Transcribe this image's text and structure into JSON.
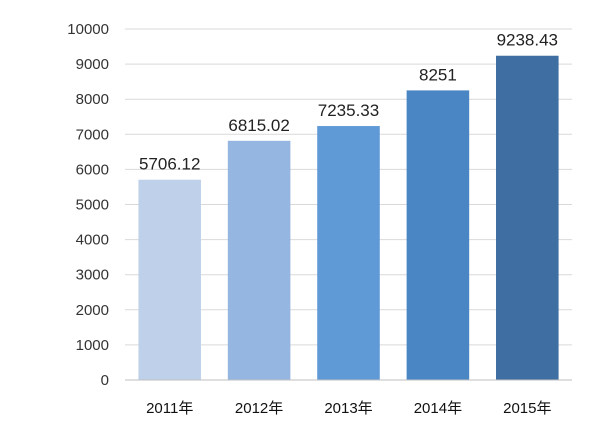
{
  "chart_data": {
    "type": "bar",
    "categories": [
      "2011年",
      "2012年",
      "2013年",
      "2014年",
      "2015年"
    ],
    "values": [
      5706.12,
      6815.02,
      7235.33,
      8251,
      9238.43
    ],
    "data_labels": [
      "5706.12",
      "6815.02",
      "7235.33",
      "8251",
      "9238.43"
    ],
    "title": "",
    "xlabel": "",
    "ylabel": "",
    "ylim": [
      0,
      10000
    ],
    "yticks": [
      0,
      1000,
      2000,
      3000,
      4000,
      5000,
      6000,
      7000,
      8000,
      9000,
      10000
    ],
    "grid": true,
    "legend": "none",
    "bar_colors": [
      "#bfd1ea",
      "#95b6e0",
      "#5f9ad7",
      "#4a86c3",
      "#3f6ea3"
    ]
  }
}
